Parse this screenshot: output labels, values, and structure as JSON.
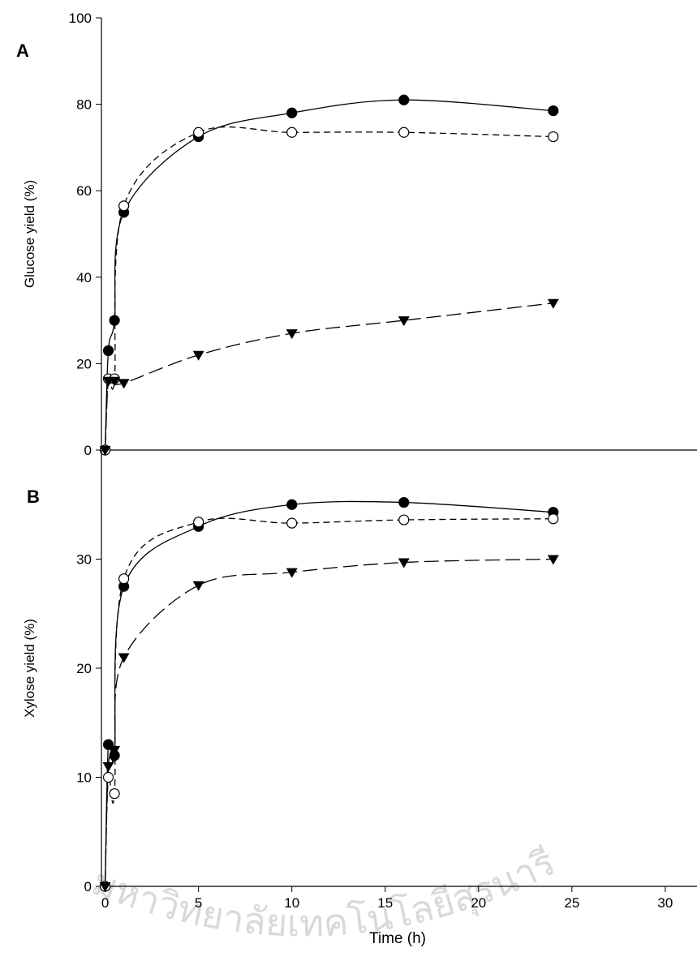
{
  "chart_data": [
    {
      "type": "scatter",
      "panel_label": "A",
      "ylabel": "Glucose yield (%)",
      "x": [
        0,
        0.17,
        0.5,
        1,
        5,
        10,
        16,
        24
      ],
      "xlim": [
        -0.2,
        31.7
      ],
      "ylim": [
        0,
        100
      ],
      "yticks": [
        0,
        20,
        40,
        60,
        80,
        100
      ],
      "series": [
        {
          "marker": "circle-filled",
          "color": "#000000",
          "dash": "solid",
          "values": [
            0,
            23,
            30,
            55,
            72.5,
            78,
            81,
            78.5
          ]
        },
        {
          "marker": "circle-open",
          "color": "#000000",
          "dash": "short",
          "values": [
            0,
            16.5,
            16.5,
            56.5,
            73.5,
            73.5,
            73.5,
            72.5
          ]
        },
        {
          "marker": "triangle-down",
          "color": "#000000",
          "dash": "long",
          "values": [
            0,
            16,
            16,
            15.5,
            22,
            27,
            30,
            34
          ]
        }
      ]
    },
    {
      "type": "scatter",
      "panel_label": "B",
      "ylabel": "Xylose yield (%)",
      "xlabel": "Time (h)",
      "x": [
        0,
        0.17,
        0.5,
        1,
        5,
        10,
        16,
        24
      ],
      "xlim": [
        -0.2,
        31.7
      ],
      "ylim": [
        0,
        40
      ],
      "yticks": [
        0,
        10,
        20,
        30
      ],
      "xticks": [
        0,
        5,
        10,
        15,
        20,
        25,
        30
      ],
      "series": [
        {
          "marker": "circle-filled",
          "color": "#000000",
          "dash": "solid",
          "values": [
            0,
            13,
            12,
            27.5,
            33,
            35,
            35.2,
            34.3
          ]
        },
        {
          "marker": "circle-open",
          "color": "#000000",
          "dash": "short",
          "values": [
            0,
            10,
            8.5,
            28.2,
            33.4,
            33.3,
            33.6,
            33.7
          ]
        },
        {
          "marker": "triangle-down",
          "color": "#000000",
          "dash": "long",
          "values": [
            0,
            11,
            12.5,
            21,
            27.6,
            28.8,
            29.7,
            30
          ]
        }
      ]
    }
  ],
  "watermark": "มหาวิทยาลัยเทคโนโลยีสุรนารี"
}
